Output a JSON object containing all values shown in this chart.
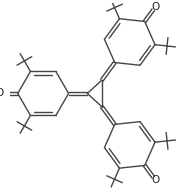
{
  "bg_color": "#ffffff",
  "line_color": "#444444",
  "line_width": 1.0,
  "figsize": [
    1.81,
    1.91
  ],
  "dpi": 100,
  "xlim": [
    -1.3,
    1.5
  ],
  "ylim": [
    -1.6,
    1.5
  ]
}
